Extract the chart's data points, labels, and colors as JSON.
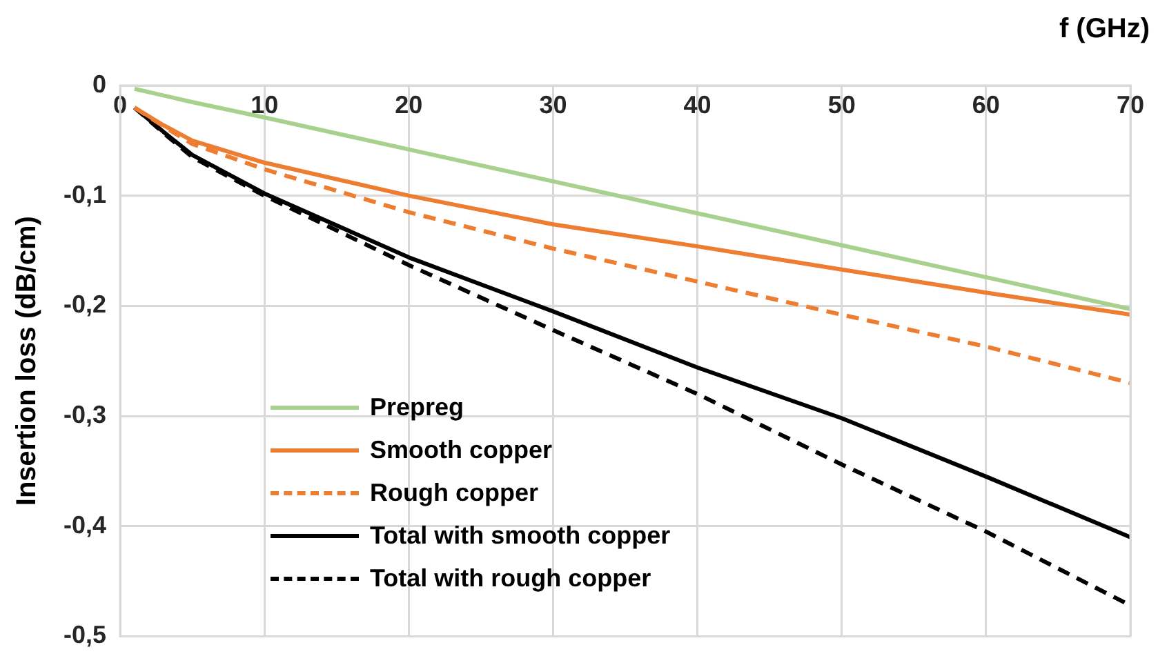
{
  "chart_data": {
    "type": "line",
    "xlabel": "f (GHz)",
    "ylabel": "Insertion loss (dB/cm)",
    "xlim": [
      0,
      70
    ],
    "xticks": [
      0,
      10,
      20,
      30,
      40,
      50,
      60,
      70
    ],
    "ylim": [
      -0.5,
      0
    ],
    "yticks": [
      {
        "value": -0.5,
        "label": "-0,5"
      },
      {
        "value": -0.4,
        "label": "-0,4"
      },
      {
        "value": -0.3,
        "label": "-0,3"
      },
      {
        "value": -0.2,
        "label": "-0,2"
      },
      {
        "value": -0.1,
        "label": "-0,1"
      },
      0
    ],
    "grid": true,
    "legend": "bottom left",
    "marker": "none",
    "x": [
      1,
      3,
      5,
      10,
      20,
      30,
      40,
      50,
      60,
      70
    ],
    "series": [
      {
        "name": "Prepreg",
        "color": "#a9d18e",
        "line_style": "solid",
        "values": [
          -0.003,
          -0.009,
          -0.015,
          -0.029,
          -0.058,
          -0.087,
          -0.116,
          -0.145,
          -0.174,
          -0.203
        ]
      },
      {
        "name": "Smooth copper",
        "color": "#ed7d31",
        "line_style": "solid",
        "values": [
          -0.02,
          -0.036,
          -0.05,
          -0.07,
          -0.1,
          -0.126,
          -0.146,
          -0.167,
          -0.188,
          -0.208
        ]
      },
      {
        "name": "Rough copper",
        "color": "#ed7d31",
        "line_style": "dashed",
        "values": [
          -0.02,
          -0.037,
          -0.053,
          -0.076,
          -0.115,
          -0.148,
          -0.178,
          -0.208,
          -0.237,
          -0.27
        ]
      },
      {
        "name": "Total with smooth copper",
        "color": "#000000",
        "line_style": "solid",
        "values": [
          -0.02,
          -0.042,
          -0.063,
          -0.098,
          -0.156,
          -0.205,
          -0.256,
          -0.302,
          -0.355,
          -0.41
        ]
      },
      {
        "name": "Total with rough copper",
        "color": "#000000",
        "line_style": "dashed",
        "values": [
          -0.02,
          -0.043,
          -0.065,
          -0.1,
          -0.163,
          -0.222,
          -0.28,
          -0.344,
          -0.405,
          -0.472
        ]
      }
    ]
  }
}
